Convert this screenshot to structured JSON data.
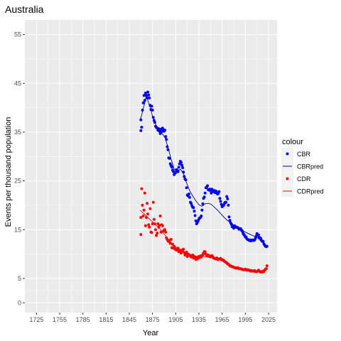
{
  "chart_data": {
    "type": "scatter",
    "title": "Australia",
    "xlabel": "Year",
    "ylabel": "Events per thousand population",
    "xlim": [
      1710,
      2036
    ],
    "ylim": [
      -2,
      58
    ],
    "x_ticks": [
      1725,
      1755,
      1785,
      1815,
      1845,
      1875,
      1905,
      1935,
      1965,
      1995,
      2025
    ],
    "y_ticks": [
      0,
      5,
      15,
      25,
      35,
      45,
      55
    ],
    "grid": true,
    "background": "#ebebeb",
    "legend": {
      "title": "colour",
      "position": "right",
      "entries": [
        {
          "label": "CBR",
          "kind": "point",
          "color": "#0000ff"
        },
        {
          "label": "CBRpred",
          "kind": "line",
          "color": "#00008b"
        },
        {
          "label": "CDR",
          "kind": "point",
          "color": "#ff0000"
        },
        {
          "label": "CDRpred",
          "kind": "line",
          "color": "#ff0000"
        }
      ]
    },
    "series": [
      {
        "name": "CBR",
        "kind": "points",
        "color": "#0000ff",
        "x": [
          1860,
          1860,
          1861,
          1862,
          1863,
          1864,
          1865,
          1866,
          1867,
          1868,
          1869,
          1870,
          1871,
          1872,
          1873,
          1874,
          1875,
          1876,
          1877,
          1878,
          1879,
          1880,
          1881,
          1882,
          1883,
          1884,
          1885,
          1886,
          1887,
          1888,
          1889,
          1890,
          1891,
          1892,
          1893,
          1894,
          1895,
          1896,
          1897,
          1898,
          1899,
          1900,
          1901,
          1902,
          1903,
          1904,
          1905,
          1906,
          1907,
          1908,
          1909,
          1910,
          1911,
          1912,
          1913,
          1914,
          1915,
          1916,
          1917,
          1918,
          1919,
          1920,
          1921,
          1922,
          1923,
          1924,
          1925,
          1926,
          1927,
          1928,
          1929,
          1930,
          1931,
          1932,
          1933,
          1934,
          1935,
          1936,
          1937,
          1938,
          1939,
          1940,
          1941,
          1942,
          1943,
          1944,
          1945,
          1946,
          1947,
          1948,
          1949,
          1950,
          1951,
          1952,
          1953,
          1954,
          1955,
          1956,
          1957,
          1958,
          1959,
          1960,
          1961,
          1962,
          1963,
          1964,
          1965,
          1966,
          1967,
          1968,
          1969,
          1970,
          1971,
          1972,
          1973,
          1974,
          1975,
          1976,
          1977,
          1978,
          1979,
          1980,
          1981,
          1982,
          1983,
          1984,
          1985,
          1986,
          1987,
          1988,
          1989,
          1990,
          1991,
          1992,
          1993,
          1994,
          1995,
          1996,
          1997,
          1998,
          1999,
          2000,
          2001,
          2002,
          2003,
          2004,
          2005,
          2006,
          2007,
          2008,
          2009,
          2010,
          2011,
          2012,
          2013,
          2014,
          2015,
          2016,
          2017,
          2018,
          2019,
          2020,
          2021,
          2022,
          2023
        ],
        "y": [
          35.3,
          37.5,
          36.0,
          39.5,
          41.0,
          42.5,
          41.5,
          43.0,
          42.5,
          42.0,
          43.2,
          42.6,
          42.0,
          40.5,
          39.6,
          40.3,
          39.5,
          38.0,
          37.4,
          37.0,
          36.2,
          36.0,
          35.8,
          35.4,
          35.7,
          35.2,
          34.7,
          35.6,
          35.1,
          35.8,
          35.5,
          35.2,
          35.4,
          34.1,
          33.5,
          32.0,
          31.4,
          29.7,
          29.6,
          28.5,
          28.1,
          27.8,
          27.2,
          26.9,
          26.3,
          26.6,
          26.7,
          27.3,
          27.2,
          26.9,
          27.8,
          28.5,
          29.0,
          28.8,
          28.2,
          27.7,
          26.8,
          25.9,
          25.4,
          25.2,
          23.6,
          22.1,
          21.9,
          22.3,
          21.6,
          20.6,
          20.4,
          19.9,
          19.6,
          19.5,
          18.8,
          17.9,
          16.8,
          16.2,
          16.5,
          16.8,
          17.2,
          17.4,
          17.5,
          17.8,
          19.0,
          20.3,
          21.4,
          21.7,
          22.5,
          23.6,
          23.7,
          24.0,
          23.2,
          23.1,
          23.3,
          23.0,
          22.5,
          23.3,
          23.0,
          22.8,
          23.0,
          22.6,
          22.9,
          22.6,
          22.3,
          22.4,
          22.8,
          21.4,
          20.8,
          20.2,
          19.7,
          19.9,
          20.0,
          20.4,
          20.6,
          20.6,
          21.8,
          21.3,
          20.0,
          17.6,
          16.9,
          16.4,
          16.1,
          15.6,
          15.6,
          15.3,
          15.8,
          15.6,
          15.5,
          15.5,
          15.4,
          15.3,
          15.1,
          15.2,
          15.2,
          14.9,
          14.7,
          14.3,
          14.0,
          13.8,
          13.5,
          13.5,
          13.1,
          13.0,
          12.9,
          12.8,
          12.9,
          12.7,
          12.8,
          12.9,
          12.8,
          12.8,
          12.9,
          13.2,
          13.7,
          14.2,
          13.8,
          13.9,
          13.4,
          13.3,
          13.2,
          12.8,
          12.6,
          12.6,
          12.1,
          11.8,
          11.6,
          11.5,
          11.6
        ]
      },
      {
        "name": "CBRpred",
        "kind": "line",
        "color": "#00008b",
        "x": [
          1859,
          1861,
          1863,
          1865,
          1867,
          1869,
          1871,
          1873,
          1875,
          1877,
          1879,
          1883,
          1887,
          1891,
          1895,
          1899,
          1903,
          1907,
          1911,
          1915,
          1919,
          1923,
          1927,
          1931,
          1935,
          1939,
          1943,
          1947,
          1951,
          1955,
          1959,
          1963,
          1967,
          1971,
          1975,
          1979,
          1983,
          1987,
          1991,
          1995,
          1999,
          2003,
          2007,
          2011,
          2015,
          2019,
          2023
        ],
        "y": [
          37.5,
          38.5,
          39.8,
          41.0,
          42.5,
          41.5,
          40.5,
          39.5,
          38.2,
          37.6,
          36.6,
          35.4,
          34.8,
          33.9,
          31.9,
          29.5,
          27.4,
          26.7,
          27.4,
          26.5,
          24.6,
          23.0,
          21.9,
          20.9,
          20.1,
          19.8,
          20.3,
          20.4,
          20.2,
          19.6,
          19.0,
          18.3,
          17.6,
          17.0,
          16.5,
          16.0,
          15.5,
          15.2,
          14.8,
          14.5,
          14.2,
          13.9,
          13.6,
          13.3,
          12.7,
          12.1,
          11.5
        ]
      },
      {
        "name": "CDR",
        "kind": "points",
        "color": "#ff0000",
        "x": [
          1860,
          1860,
          1861,
          1862,
          1863,
          1864,
          1865,
          1866,
          1867,
          1868,
          1869,
          1870,
          1871,
          1872,
          1873,
          1874,
          1875,
          1876,
          1877,
          1878,
          1879,
          1880,
          1881,
          1882,
          1883,
          1884,
          1885,
          1886,
          1887,
          1888,
          1889,
          1890,
          1891,
          1892,
          1893,
          1894,
          1895,
          1896,
          1897,
          1898,
          1899,
          1900,
          1901,
          1902,
          1903,
          1904,
          1905,
          1906,
          1907,
          1908,
          1909,
          1910,
          1911,
          1912,
          1913,
          1914,
          1915,
          1916,
          1917,
          1918,
          1919,
          1920,
          1921,
          1922,
          1923,
          1924,
          1925,
          1926,
          1927,
          1928,
          1929,
          1930,
          1931,
          1932,
          1933,
          1934,
          1935,
          1936,
          1937,
          1938,
          1939,
          1940,
          1941,
          1942,
          1943,
          1944,
          1945,
          1946,
          1947,
          1948,
          1949,
          1950,
          1951,
          1952,
          1953,
          1954,
          1955,
          1956,
          1957,
          1958,
          1959,
          1960,
          1961,
          1962,
          1963,
          1964,
          1965,
          1966,
          1967,
          1968,
          1969,
          1970,
          1971,
          1972,
          1973,
          1974,
          1975,
          1976,
          1977,
          1978,
          1979,
          1980,
          1981,
          1982,
          1983,
          1984,
          1985,
          1986,
          1987,
          1988,
          1989,
          1990,
          1991,
          1992,
          1993,
          1994,
          1995,
          1996,
          1997,
          1998,
          1999,
          2000,
          2001,
          2002,
          2003,
          2004,
          2005,
          2006,
          2007,
          2008,
          2009,
          2010,
          2011,
          2012,
          2013,
          2014,
          2015,
          2016,
          2017,
          2018,
          2019,
          2020,
          2021,
          2022,
          2023
        ],
        "y": [
          14.0,
          17.5,
          23.4,
          20.0,
          17.8,
          19.0,
          22.5,
          15.8,
          17.5,
          20.4,
          18.2,
          16.0,
          15.5,
          19.3,
          14.5,
          14.4,
          16.2,
          20.6,
          17.1,
          16.2,
          15.0,
          13.8,
          14.3,
          16.2,
          15.5,
          15.9,
          17.8,
          14.5,
          16.0,
          15.8,
          14.7,
          14.9,
          15.0,
          14.5,
          13.3,
          13.0,
          12.7,
          12.6,
          12.8,
          12.2,
          13.0,
          11.3,
          12.0,
          11.2,
          11.6,
          11.1,
          10.9,
          10.8,
          11.0,
          11.2,
          10.5,
          10.8,
          10.6,
          10.2,
          10.8,
          10.7,
          11.0,
          10.3,
          9.8,
          10.1,
          10.4,
          9.5,
          10.0,
          9.8,
          9.8,
          9.6,
          9.4,
          9.7,
          9.8,
          9.2,
          9.5,
          9.4,
          8.9,
          9.3,
          9.0,
          9.2,
          9.5,
          9.3,
          9.6,
          9.4,
          9.7,
          9.9,
          10.2,
          10.5,
          10.5,
          10.0,
          9.8,
          9.7,
          9.8,
          9.6,
          9.5,
          9.4,
          9.6,
          9.7,
          9.4,
          9.2,
          9.1,
          9.1,
          9.0,
          9.2,
          8.9,
          8.9,
          9.0,
          9.0,
          9.1,
          8.9,
          8.8,
          8.8,
          8.7,
          8.5,
          8.4,
          8.3,
          8.2,
          8.0,
          7.9,
          7.8,
          7.6,
          7.5,
          7.5,
          7.4,
          7.4,
          7.3,
          7.2,
          7.2,
          7.1,
          7.1,
          7.2,
          7.1,
          7.0,
          7.0,
          7.0,
          6.9,
          6.9,
          6.8,
          6.8,
          6.8,
          6.9,
          6.8,
          6.7,
          6.8,
          6.7,
          6.7,
          6.6,
          6.5,
          6.6,
          6.5,
          6.5,
          6.5,
          6.6,
          6.4,
          6.4,
          6.4,
          6.5,
          6.7,
          6.5,
          6.4,
          6.3,
          6.4,
          6.3,
          6.5,
          6.4,
          6.7,
          6.9,
          7.0,
          7.6
        ]
      },
      {
        "name": "CDRpred",
        "kind": "line",
        "color": "#ff0000",
        "x": [
          1859,
          1861,
          1863,
          1865,
          1867,
          1869,
          1871,
          1873,
          1875,
          1877,
          1879,
          1881,
          1883,
          1885,
          1887,
          1889,
          1891,
          1893,
          1895,
          1897,
          1899,
          1901,
          1903,
          1905,
          1909,
          1913,
          1917,
          1921,
          1925,
          1929,
          1933,
          1937,
          1941,
          1945,
          1949,
          1953,
          1957,
          1961,
          1965,
          1969,
          1973,
          1977,
          1981,
          1985,
          1989,
          1993,
          1997,
          2001,
          2005,
          2009,
          2013,
          2017,
          2021,
          2023
        ],
        "y": [
          19.0,
          18.7,
          18.4,
          18.1,
          17.8,
          17.5,
          17.2,
          16.9,
          16.6,
          16.3,
          16.0,
          15.7,
          15.4,
          15.1,
          14.7,
          14.3,
          13.9,
          13.5,
          13.1,
          12.7,
          12.4,
          12.1,
          11.8,
          11.5,
          11.0,
          10.6,
          10.3,
          10.0,
          9.8,
          9.6,
          9.5,
          9.5,
          9.5,
          9.4,
          9.3,
          9.2,
          9.0,
          8.8,
          8.6,
          8.3,
          8.0,
          7.7,
          7.4,
          7.2,
          7.0,
          6.9,
          6.8,
          6.7,
          6.6,
          6.6,
          6.5,
          6.6,
          6.7,
          6.8
        ]
      }
    ]
  }
}
